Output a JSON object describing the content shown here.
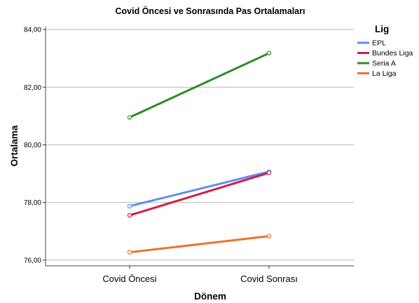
{
  "chart_data": {
    "type": "line",
    "title": "Covid Öncesi ve Sonrasında Pas Ortalamaları",
    "xlabel": "Dönem",
    "ylabel": "Ortalama",
    "categories": [
      "Covid Öncesi",
      "Covid Sonrası"
    ],
    "ylim": [
      75.8,
      84.1
    ],
    "yticks": [
      76,
      78,
      80,
      82,
      84
    ],
    "ytick_labels": [
      "76,00",
      "78,00",
      "80,00",
      "82,00",
      "84,00"
    ],
    "grid": true,
    "legend": {
      "title": "Lig",
      "position": "right"
    },
    "series": [
      {
        "name": "EPL",
        "color": "#5b8ff0",
        "values": [
          77.87,
          79.07
        ]
      },
      {
        "name": "Bundes Liga",
        "color": "#d41b45",
        "values": [
          77.55,
          79.03
        ]
      },
      {
        "name": "Seria A",
        "color": "#2e8b24",
        "values": [
          80.95,
          83.18
        ]
      },
      {
        "name": "La Liga",
        "color": "#f07029",
        "values": [
          76.27,
          76.83
        ]
      }
    ]
  }
}
